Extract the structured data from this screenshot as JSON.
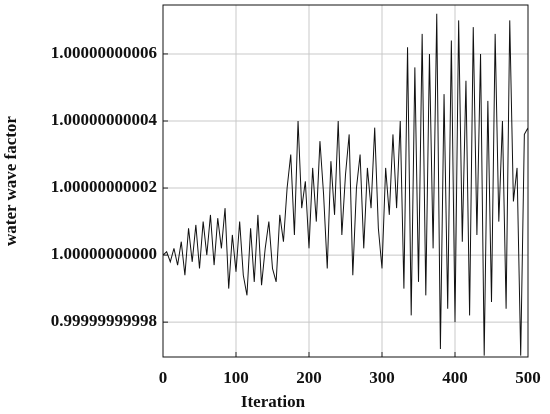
{
  "chart_data": {
    "type": "line",
    "xlabel": "Iteration",
    "ylabel": "water wave factor",
    "xlim": [
      0,
      500
    ],
    "xticks": [
      0,
      100,
      200,
      300,
      400,
      500
    ],
    "ylim": [
      0.9999999999696,
      1.0000000000746
    ],
    "yticks": [
      {
        "value": 0.99999999998,
        "label": "0.99999999998"
      },
      {
        "value": 1,
        "label": "1.00000000000"
      },
      {
        "value": 1.00000000002,
        "label": "1.00000000002"
      },
      {
        "value": 1.00000000004,
        "label": "1.00000000004"
      },
      {
        "value": 1.00000000006,
        "label": "1.00000000006"
      }
    ],
    "grid": true,
    "x": [
      0,
      5,
      10,
      15,
      20,
      25,
      30,
      35,
      40,
      45,
      50,
      55,
      60,
      65,
      70,
      75,
      80,
      85,
      90,
      95,
      100,
      105,
      110,
      115,
      120,
      125,
      130,
      135,
      140,
      145,
      150,
      155,
      160,
      165,
      170,
      175,
      180,
      185,
      190,
      195,
      200,
      205,
      210,
      215,
      220,
      225,
      230,
      235,
      240,
      245,
      250,
      255,
      260,
      265,
      270,
      275,
      280,
      285,
      290,
      295,
      300,
      305,
      310,
      315,
      320,
      325,
      330,
      335,
      340,
      345,
      350,
      355,
      360,
      365,
      370,
      375,
      380,
      385,
      390,
      395,
      400,
      405,
      410,
      415,
      420,
      425,
      430,
      435,
      440,
      445,
      450,
      455,
      460,
      465,
      470,
      475,
      480,
      485,
      490,
      495,
      500
    ],
    "series": [
      {
        "color": "#111111",
        "values": [
          1,
          1.000000000001,
          0.999999999998,
          1.000000000002,
          0.999999999997,
          1.000000000004,
          0.999999999994,
          1.000000000008,
          0.999999999998,
          1.000000000009,
          0.999999999996,
          1.00000000001,
          1,
          1.000000000012,
          0.999999999997,
          1.000000000011,
          1.000000000002,
          1.000000000014,
          0.99999999999,
          1.000000000006,
          0.999999999995,
          1.00000000001,
          0.999999999994,
          0.999999999988,
          1.000000000008,
          0.999999999992,
          1.000000000012,
          0.999999999991,
          1.000000000002,
          1.00000000001,
          0.999999999996,
          0.999999999992,
          1.000000000012,
          1.000000000004,
          1.00000000002,
          1.00000000003,
          1.000000000006,
          1.00000000004,
          1.000000000014,
          1.000000000022,
          1.000000000002,
          1.000000000026,
          1.00000000001,
          1.000000000034,
          1.000000000018,
          0.999999999996,
          1.000000000028,
          1.000000000012,
          1.00000000004,
          1.000000000006,
          1.000000000024,
          1.000000000036,
          0.999999999994,
          1.00000000002,
          1.00000000003,
          1.000000000002,
          1.000000000026,
          1.000000000014,
          1.000000000038,
          1.000000000008,
          0.999999999996,
          1.000000000026,
          1.000000000012,
          1.000000000036,
          1.000000000014,
          1.00000000004,
          0.99999999999,
          1.000000000062,
          0.999999999982,
          1.000000000056,
          0.999999999992,
          1.000000000066,
          0.999999999988,
          1.00000000006,
          1.000000000002,
          1.000000000072,
          0.999999999972,
          1.000000000048,
          0.999999999984,
          1.000000000064,
          0.99999999998,
          1.00000000007,
          1.000000000004,
          1.000000000052,
          0.999999999982,
          1.000000000068,
          1.000000000006,
          1.00000000006,
          0.99999999997,
          1.000000000046,
          0.999999999986,
          1.000000000066,
          1.00000000001,
          1.00000000004,
          0.999999999984,
          1.00000000007,
          1.000000000016,
          1.000000000026,
          0.99999999997,
          1.000000000036,
          1.000000000038
        ]
      }
    ]
  }
}
